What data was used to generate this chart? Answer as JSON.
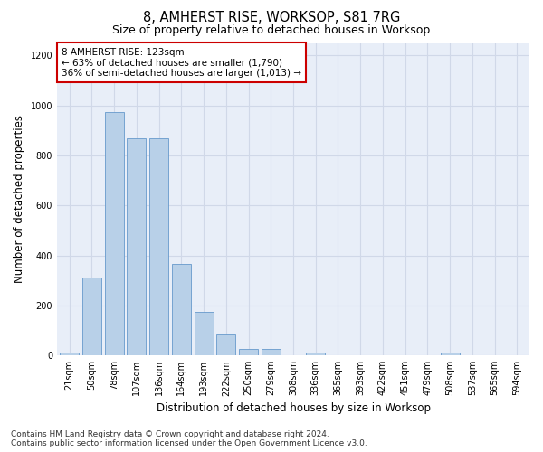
{
  "title": "8, AMHERST RISE, WORKSOP, S81 7RG",
  "subtitle": "Size of property relative to detached houses in Worksop",
  "xlabel": "Distribution of detached houses by size in Worksop",
  "ylabel": "Number of detached properties",
  "footnote": "Contains HM Land Registry data © Crown copyright and database right 2024.\nContains public sector information licensed under the Open Government Licence v3.0.",
  "annotation_line1": "8 AMHERST RISE: 123sqm",
  "annotation_line2": "← 63% of detached houses are smaller (1,790)",
  "annotation_line3": "36% of semi-detached houses are larger (1,013) →",
  "bar_color": "#b8d0e8",
  "bar_edge_color": "#6699cc",
  "bg_color": "#e8eef8",
  "grid_color": "#d0d8e8",
  "annotation_box_edgecolor": "#cc0000",
  "categories": [
    "21sqm",
    "50sqm",
    "78sqm",
    "107sqm",
    "136sqm",
    "164sqm",
    "193sqm",
    "222sqm",
    "250sqm",
    "279sqm",
    "308sqm",
    "336sqm",
    "365sqm",
    "393sqm",
    "422sqm",
    "451sqm",
    "479sqm",
    "508sqm",
    "537sqm",
    "565sqm",
    "594sqm"
  ],
  "values": [
    12,
    310,
    975,
    870,
    870,
    365,
    175,
    85,
    25,
    25,
    0,
    12,
    0,
    0,
    0,
    0,
    0,
    12,
    0,
    0,
    0
  ],
  "ylim": [
    0,
    1250
  ],
  "yticks": [
    0,
    200,
    400,
    600,
    800,
    1000,
    1200
  ],
  "title_fontsize": 10.5,
  "subtitle_fontsize": 9,
  "ylabel_fontsize": 8.5,
  "xlabel_fontsize": 8.5,
  "tick_fontsize": 7,
  "annotation_fontsize": 7.5,
  "footnote_fontsize": 6.5
}
